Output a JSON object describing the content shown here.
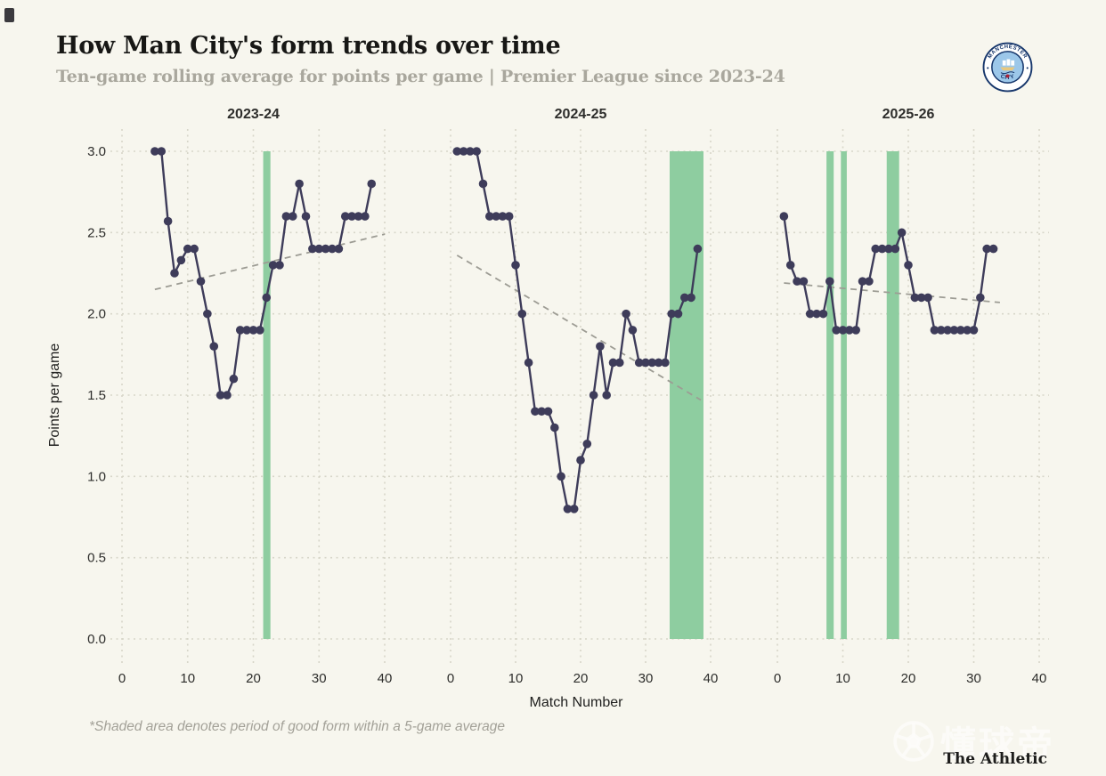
{
  "page": {
    "title": "How Man City's form trends over time",
    "subtitle": "Ten-game rolling average for points per game | Premier League since 2023-24",
    "footnote": "*Shaded area denotes period of good form within a 5-game average",
    "brand": "The Athletic",
    "watermark": "懂球帝",
    "badge": {
      "top_text": "MANCHESTER",
      "bottom_text": "CITY"
    }
  },
  "chart_data": {
    "type": "line",
    "title": "How Man City's form trends over time",
    "subtitle": "Ten-game rolling average for points per game | Premier League since 2023-24",
    "xlabel": "Match Number",
    "ylabel": "Points per game",
    "xlim": [
      0,
      42
    ],
    "ylim": [
      0.0,
      3.0
    ],
    "xticks": [
      0,
      10,
      20,
      30,
      40
    ],
    "ytick_labels": [
      "3.0",
      "2.5",
      "2.0",
      "1.5",
      "1.0",
      "0.5",
      "0.0"
    ],
    "grid": true,
    "legend_position": "none",
    "annotation": "*Shaded area denotes period of good form within a 5-game average",
    "colors": {
      "series": "#3e3c5a",
      "band": "#8ecda0",
      "trend": "#9d9c94",
      "background": "#f7f6ee"
    },
    "panels": [
      {
        "season": "2023-24",
        "first_match": 5,
        "values": [
          3.0,
          3.0,
          2.57,
          2.25,
          2.33,
          2.4,
          2.4,
          2.2,
          2.0,
          1.8,
          1.5,
          1.5,
          1.6,
          1.9,
          1.9,
          1.9,
          1.9,
          2.1,
          2.3,
          2.3,
          2.6,
          2.6,
          2.8,
          2.6,
          2.4,
          2.4,
          2.4,
          2.4,
          2.4,
          2.6,
          2.6,
          2.6,
          2.6,
          2.8
        ],
        "trend": {
          "x1": 5,
          "y1": 2.15,
          "x2": 40,
          "y2": 2.49
        },
        "good_form_bands": [
          [
            21.5,
            22.6
          ]
        ]
      },
      {
        "season": "2024-25",
        "first_match": 1,
        "values": [
          3.0,
          3.0,
          3.0,
          3.0,
          2.8,
          2.6,
          2.6,
          2.6,
          2.6,
          2.3,
          2.0,
          1.7,
          1.4,
          1.4,
          1.4,
          1.3,
          1.0,
          0.8,
          0.8,
          1.1,
          1.2,
          1.5,
          1.8,
          1.5,
          1.7,
          1.7,
          2.0,
          1.9,
          1.7,
          1.7,
          1.7,
          1.7,
          1.7,
          2.0,
          2.0,
          2.1,
          2.1,
          2.4
        ],
        "trend": {
          "x1": 1,
          "y1": 2.36,
          "x2": 38.5,
          "y2": 1.47
        },
        "good_form_bands": [
          [
            33.7,
            38.9
          ]
        ]
      },
      {
        "season": "2025-26",
        "first_match": 1,
        "values": [
          2.6,
          2.3,
          2.2,
          2.2,
          2.0,
          2.0,
          2.0,
          2.2,
          1.9,
          1.9,
          1.9,
          1.9,
          2.2,
          2.2,
          2.4,
          2.4,
          2.4,
          2.4,
          2.5,
          2.3,
          2.1,
          2.1,
          2.1,
          1.9,
          1.9,
          1.9,
          1.9,
          1.9,
          1.9,
          1.9,
          2.1,
          2.4,
          2.4
        ],
        "trend": {
          "x1": 1,
          "y1": 2.19,
          "x2": 34,
          "y2": 2.07
        },
        "good_form_bands": [
          [
            7.5,
            8.6
          ],
          [
            9.7,
            10.6
          ],
          [
            16.7,
            18.6
          ]
        ]
      }
    ]
  }
}
